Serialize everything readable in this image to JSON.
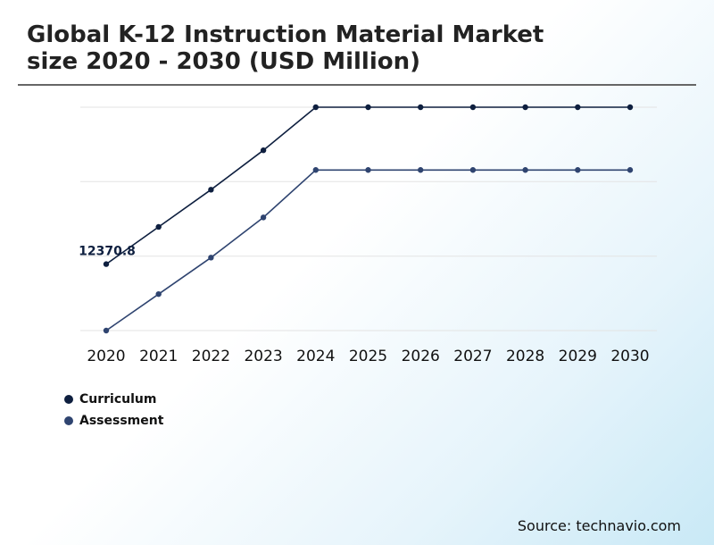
{
  "title_line1": "Global K-12 Instruction Material Market",
  "title_line2": "size 2020 - 2030 (USD Million)",
  "source": "Source: technavio.com",
  "colors": {
    "curriculum": "#0e1f3f",
    "assessment": "#2f4470",
    "grid": "#e3e3e3"
  },
  "chart_data": {
    "type": "line",
    "title": "Global K-12 Instruction Material Market size 2020 - 2030 (USD Million)",
    "xlabel": "",
    "ylabel": "",
    "grid": true,
    "legend": "bottom-left",
    "categories": [
      "2020",
      "2021",
      "2022",
      "2023",
      "2024",
      "2025",
      "2026",
      "2027",
      "2028",
      "2029",
      "2030"
    ],
    "series": [
      {
        "name": "Curriculum",
        "values": [
          12370.8,
          12880,
          13390,
          13930,
          14520,
          14520,
          14520,
          14520,
          14520,
          14520,
          14520
        ]
      },
      {
        "name": "Assessment",
        "values": [
          11460,
          11960,
          12460,
          13010,
          13660,
          13660,
          13660,
          13660,
          13660,
          13660,
          13660
        ]
      }
    ],
    "data_labels": [
      {
        "series": 0,
        "index": 0,
        "text": "12370.8"
      }
    ],
    "ylim": [
      11460,
      14520
    ]
  }
}
